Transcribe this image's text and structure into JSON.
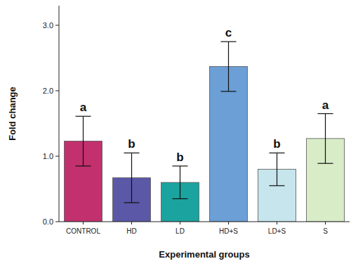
{
  "chart_data": {
    "type": "bar",
    "x_label": "Experimental groups",
    "y_label": "Fold change",
    "categories": [
      "CONTROL",
      "HD",
      "LD",
      "HD+S",
      "LD+S",
      "S"
    ],
    "values": [
      1.23,
      0.67,
      0.6,
      2.37,
      0.8,
      1.27
    ],
    "errors": [
      0.38,
      0.38,
      0.25,
      0.38,
      0.25,
      0.38
    ],
    "annotations": [
      "a",
      "b",
      "b",
      "c",
      "b",
      "a"
    ],
    "colors": [
      "#c2306d",
      "#5b58a8",
      "#1ba39f",
      "#6b9fd6",
      "#c6e5ec",
      "#d7ecc7"
    ],
    "ylim": [
      0,
      3.3
    ],
    "yticks": [
      {
        "value": 0,
        "label": "0.0"
      },
      {
        "value": 1,
        "label": "1.0"
      },
      {
        "value": 2,
        "label": "2.0"
      },
      {
        "value": 3,
        "label": "3.0"
      }
    ],
    "grid": false
  }
}
